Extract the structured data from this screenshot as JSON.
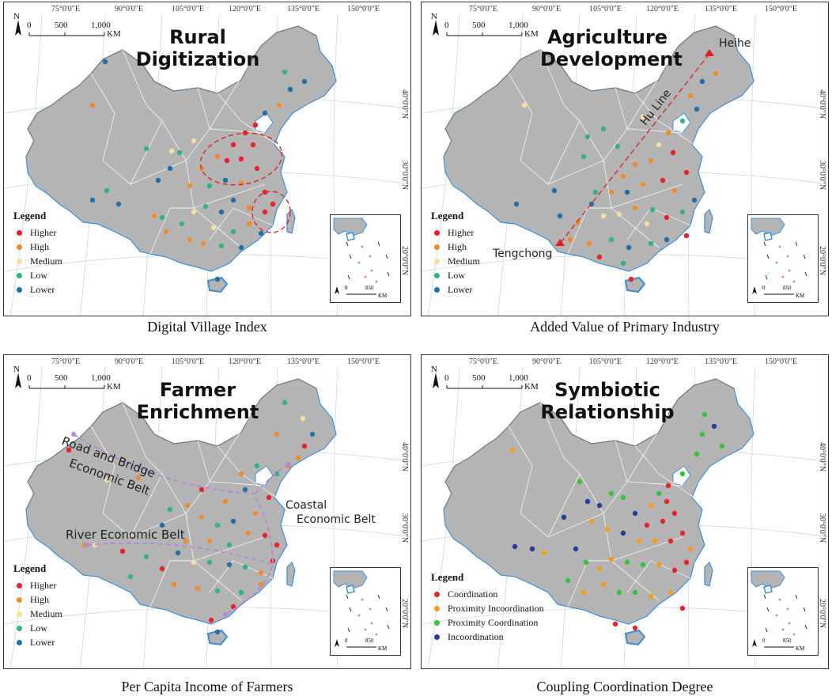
{
  "colors": {
    "higher": "#e8222a",
    "high": "#f08a2a",
    "medium": "#f8dca0",
    "low": "#2fb38a",
    "lower": "#1f6fa8",
    "coordination": "#e8222a",
    "proximity_incoordination": "#f59a1c",
    "proximity_coordination": "#34c43c",
    "incoordination": "#1f3f9a",
    "land": "#b4b4b4",
    "coast": "#3a8fd8"
  },
  "common": {
    "longitudes": [
      "75°0'0\"E",
      "90°0'0\"E",
      "105°0'0\"E",
      "120°0'0\"E",
      "135°0'0\"E",
      "150°0'0\"E"
    ],
    "latitudes": [
      "40°0'0\"N",
      "30°0'0\"N",
      "20°0'0\"N"
    ],
    "scale": {
      "t0": "0",
      "t1": "500",
      "t2": "1,000",
      "unit": "KM"
    },
    "inset_scale": {
      "t0": "0",
      "t1": "850",
      "unit": "KM"
    },
    "north": "N"
  },
  "panels": [
    {
      "title_line1": "Rural",
      "title_line2": "Digitization",
      "legend_title": "Legend",
      "legend": [
        "Higher",
        "High",
        "Medium",
        "Low",
        "Lower"
      ],
      "caption": "Digital Village Index"
    },
    {
      "title_line1": "Agriculture",
      "title_line2": "Development",
      "legend_title": "Legend",
      "legend": [
        "Higher",
        "High",
        "Medium",
        "Low",
        "Lower"
      ],
      "caption": "Added Value of Primary Industry",
      "annotations": {
        "heihe": "Heihe",
        "tengchong": "Tengchong",
        "hu_line": "Hu Line"
      }
    },
    {
      "title_line1": "Farmer",
      "title_line2": "Enrichment",
      "legend_title": "Legend",
      "legend": [
        "Higher",
        "High",
        "Medium",
        "Low",
        "Lower"
      ],
      "caption": "Per Capita Income of Farmers",
      "annotations": {
        "road_l1": "Road and Bridge",
        "road_l2": "Economic Belt",
        "coastal_l1": "Coastal",
        "coastal_l2": "Economic Belt",
        "river": "River Economic Belt"
      }
    },
    {
      "title_line1": "Symbiotic",
      "title_line2": "Relationship",
      "legend_title": "Legend",
      "legend": [
        "Coordination",
        "Proximity Incoordination",
        "Proximity Coordination",
        "Incoordination"
      ],
      "caption": "Coupling Coordination Degree"
    }
  ]
}
